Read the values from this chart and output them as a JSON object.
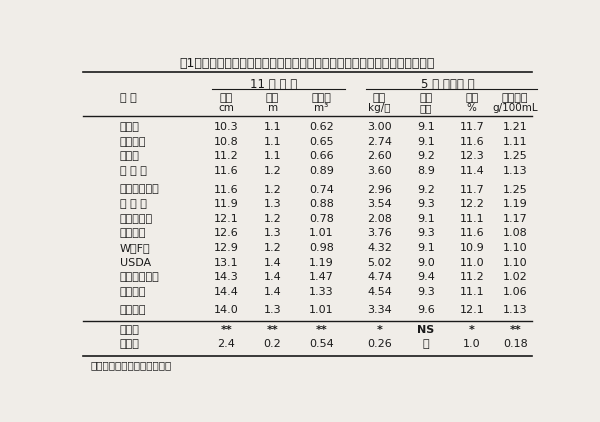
{
  "title": "表1　各種カラタチ系統台木の違いが青島温州の生育及び品質に及ぼす影響",
  "group1_header": "11 年 生 時",
  "group2_header": "5 年 間　平 均",
  "col_headers_line1": [
    "品 種",
    "幹周",
    "樹高",
    "樹容積",
    "収量",
    "着色",
    "糖度",
    "クエン酸"
  ],
  "col_headers_line2": [
    "",
    "cm",
    "m",
    "m³",
    "kg/本",
    "歩合",
    "%",
    "g/100mL"
  ],
  "group1_rows": [
    [
      "栃　本",
      "10.3",
      "1.1",
      "0.62",
      "3.00",
      "9.1",
      "11.7",
      "1.21"
    ],
    [
      "ヒリュウ",
      "10.8",
      "1.1",
      "0.65",
      "2.74",
      "9.1",
      "11.6",
      "1.11"
    ],
    [
      "大　葉",
      "11.2",
      "1.1",
      "0.66",
      "2.60",
      "9.2",
      "12.3",
      "1.25"
    ],
    [
      "和 歌 山",
      "11.6",
      "1.2",
      "0.89",
      "3.60",
      "8.9",
      "11.4",
      "1.13"
    ]
  ],
  "group2_rows": [
    [
      "ロブスター－",
      "11.6",
      "1.2",
      "0.74",
      "2.96",
      "9.2",
      "11.7",
      "1.25"
    ],
    [
      "ラ ン ス",
      "11.9",
      "1.3",
      "0.88",
      "3.54",
      "9.3",
      "12.2",
      "1.19"
    ],
    [
      "ルビドー－",
      "12.1",
      "1.2",
      "0.78",
      "2.08",
      "9.1",
      "11.1",
      "1.17"
    ],
    [
      "ディビス",
      "12.6",
      "1.3",
      "1.01",
      "3.76",
      "9.3",
      "11.6",
      "1.08"
    ],
    [
      "W　F＊",
      "12.9",
      "1.2",
      "0.98",
      "4.32",
      "9.1",
      "10.9",
      "1.10"
    ],
    [
      "USDA",
      "13.1",
      "1.4",
      "1.19",
      "5.02",
      "9.0",
      "11.0",
      "1.10"
    ],
    [
      "クライダー－",
      "14.3",
      "1.4",
      "1.47",
      "4.74",
      "9.4",
      "11.2",
      "1.02"
    ],
    [
      "ポメロイ",
      "14.4",
      "1.4",
      "1.33",
      "4.54",
      "9.3",
      "11.1",
      "1.06"
    ]
  ],
  "group3_rows": [
    [
      "トロイヤ",
      "14.0",
      "1.3",
      "1.01",
      "3.34",
      "9.6",
      "12.1",
      "1.13"
    ]
  ],
  "sig_label": "有意性",
  "sig_values": [
    "**",
    "**",
    "**",
    "*",
    "NS",
    "*",
    "**"
  ],
  "lsd_label": "Ｌｓｄ",
  "lsd_values": [
    "2.4",
    "0.2",
    "0.54",
    "0.26",
    "－",
    "1.0",
    "0.18"
  ],
  "footnote": "＊：ウェーバーフォーセット",
  "bg_color": "#f0ede8",
  "text_color": "#1a1a1a",
  "line_color": "#1a1a1a"
}
